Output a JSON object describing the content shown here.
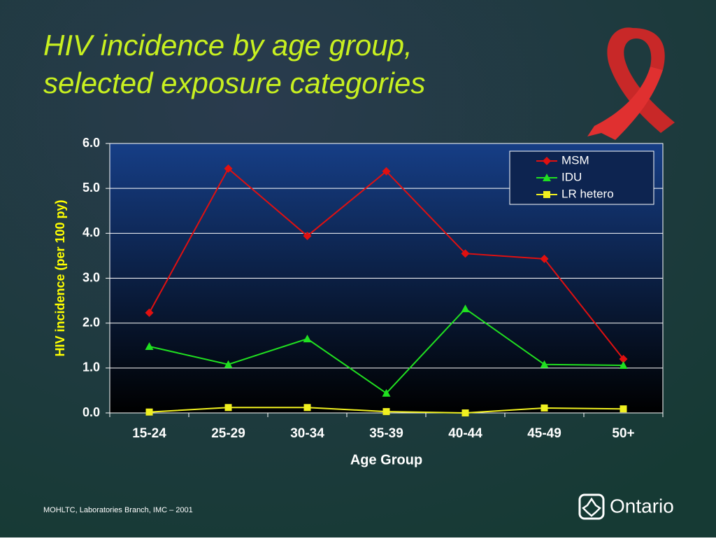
{
  "title": [
    "HIV incidence by age group,",
    "selected exposure categories"
  ],
  "footer": {
    "source": "MOHLTC, Laboratories Branch, IMC – 2001",
    "logo": "Ontario"
  },
  "chart_data": {
    "type": "line",
    "x_label": "Age Group",
    "y_label": "HIV incidence (per 100 py)",
    "categories": [
      "15-24",
      "25-29",
      "30-34",
      "35-39",
      "40-44",
      "45-49",
      "50+"
    ],
    "series": [
      {
        "name": "MSM",
        "color": "#e01010",
        "marker": "diamond",
        "values": [
          2.23,
          5.44,
          3.94,
          5.38,
          3.55,
          3.43,
          1.2
        ]
      },
      {
        "name": "IDU",
        "color": "#20e020",
        "marker": "triangle",
        "values": [
          1.48,
          1.08,
          1.65,
          0.44,
          2.32,
          1.08,
          1.06
        ]
      },
      {
        "name": "LR hetero",
        "color": "#f0f020",
        "marker": "square",
        "values": [
          0.02,
          0.12,
          0.12,
          0.03,
          0.0,
          0.11,
          0.09
        ]
      }
    ],
    "ylim": [
      0,
      6
    ],
    "yticks": [
      {
        "value": 0,
        "label": "0.0"
      },
      {
        "value": 1,
        "label": "1.0"
      },
      {
        "value": 2,
        "label": "2.0"
      },
      {
        "value": 3,
        "label": "3.0"
      },
      {
        "value": 4,
        "label": "4.0"
      },
      {
        "value": 5,
        "label": "5.0"
      },
      {
        "value": 6,
        "label": "6.0"
      }
    ],
    "grid": true,
    "legend": "top-right"
  }
}
